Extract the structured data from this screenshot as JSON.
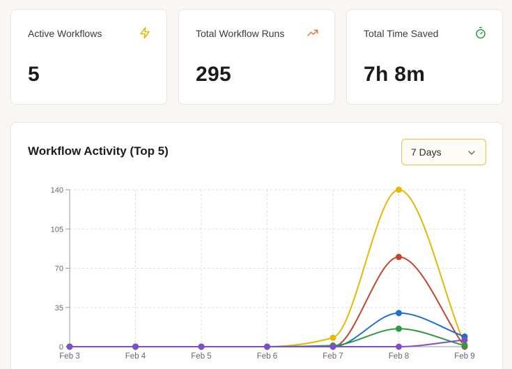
{
  "stats": [
    {
      "label": "Active Workflows",
      "value": "5",
      "icon": "lightning-icon",
      "color": "#e6b800"
    },
    {
      "label": "Total Workflow Runs",
      "value": "295",
      "icon": "trending-up-icon",
      "color": "#e07a3a"
    },
    {
      "label": "Total Time Saved",
      "value": "7h 8m",
      "icon": "stopwatch-icon",
      "color": "#2e9a44"
    }
  ],
  "activity": {
    "title": "Workflow Activity (Top 5)",
    "range_select": {
      "value": "7 Days"
    }
  },
  "chart_data": {
    "type": "line",
    "title": "Workflow Activity (Top 5)",
    "categories": [
      "Feb 3",
      "Feb 4",
      "Feb 5",
      "Feb 6",
      "Feb 7",
      "Feb 8",
      "Feb 9"
    ],
    "ylim": [
      0,
      140
    ],
    "yticks": [
      0,
      35,
      70,
      105,
      140
    ],
    "grid": true,
    "series": [
      {
        "color": "#e6b800",
        "values": [
          0,
          0,
          0,
          0,
          8,
          140,
          2
        ]
      },
      {
        "color": "#c4452c",
        "values": [
          0,
          0,
          0,
          0,
          0,
          80,
          0
        ]
      },
      {
        "color": "#1f6fd1",
        "values": [
          0,
          0,
          0,
          0,
          0,
          30,
          9
        ]
      },
      {
        "color": "#2e9a44",
        "values": [
          0,
          0,
          0,
          0,
          1,
          16,
          1
        ]
      },
      {
        "color": "#7e4fc8",
        "values": [
          0,
          0,
          0,
          0,
          0,
          0,
          6
        ]
      }
    ]
  }
}
